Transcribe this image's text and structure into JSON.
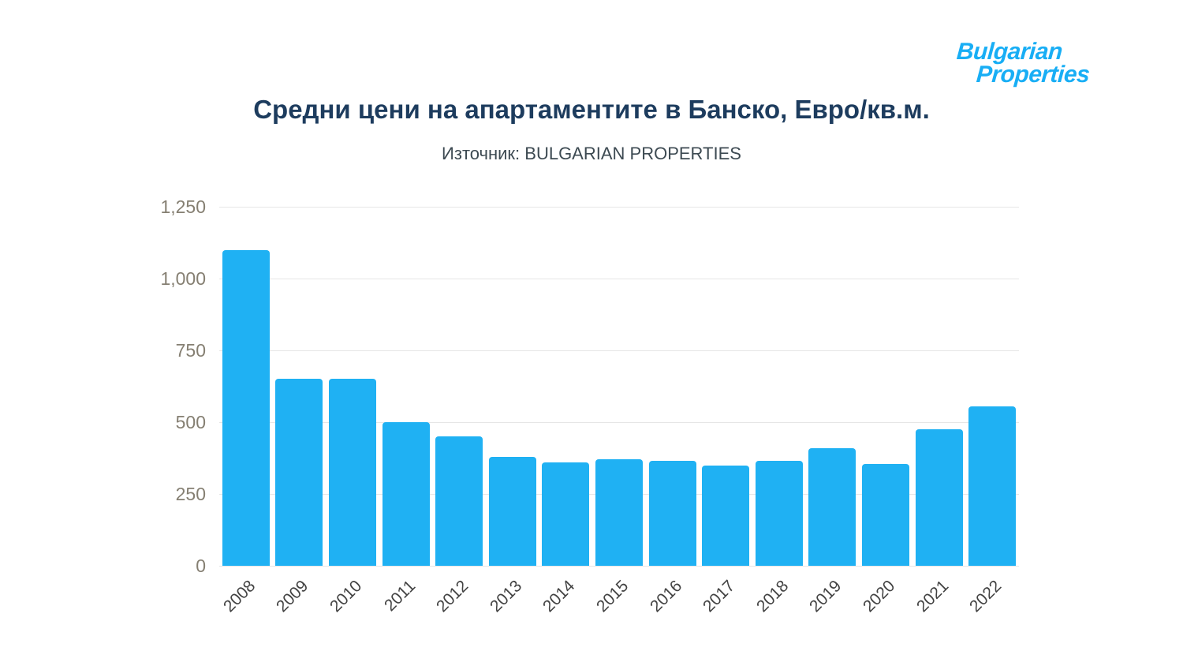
{
  "logo": {
    "line1": "Bulgarian",
    "line2": "Properties",
    "color": "#18aef5"
  },
  "title": "Средни цени на апартаментите в Банско, Евро/кв.м.",
  "subtitle": "Източник: BULGARIAN PROPERTIES",
  "chart_data": {
    "type": "bar",
    "title": "Средни цени на апартаментите в Банско, Евро/кв.м.",
    "subtitle": "Източник: BULGARIAN PROPERTIES",
    "categories": [
      "2008",
      "2009",
      "2010",
      "2011",
      "2012",
      "2013",
      "2014",
      "2015",
      "2016",
      "2017",
      "2018",
      "2019",
      "2020",
      "2021",
      "2022"
    ],
    "values": [
      1100,
      650,
      650,
      500,
      450,
      380,
      360,
      370,
      365,
      350,
      365,
      410,
      355,
      475,
      555
    ],
    "xlabel": "",
    "ylabel": "",
    "ylim": [
      0,
      1250
    ],
    "yticks": [
      0,
      250,
      500,
      750,
      1000,
      1250
    ],
    "ytick_labels": [
      "0",
      "250",
      "500",
      "750",
      "1,000",
      "1,250"
    ],
    "bar_color": "#1fb1f3",
    "grid": true,
    "legend_position": "none"
  }
}
